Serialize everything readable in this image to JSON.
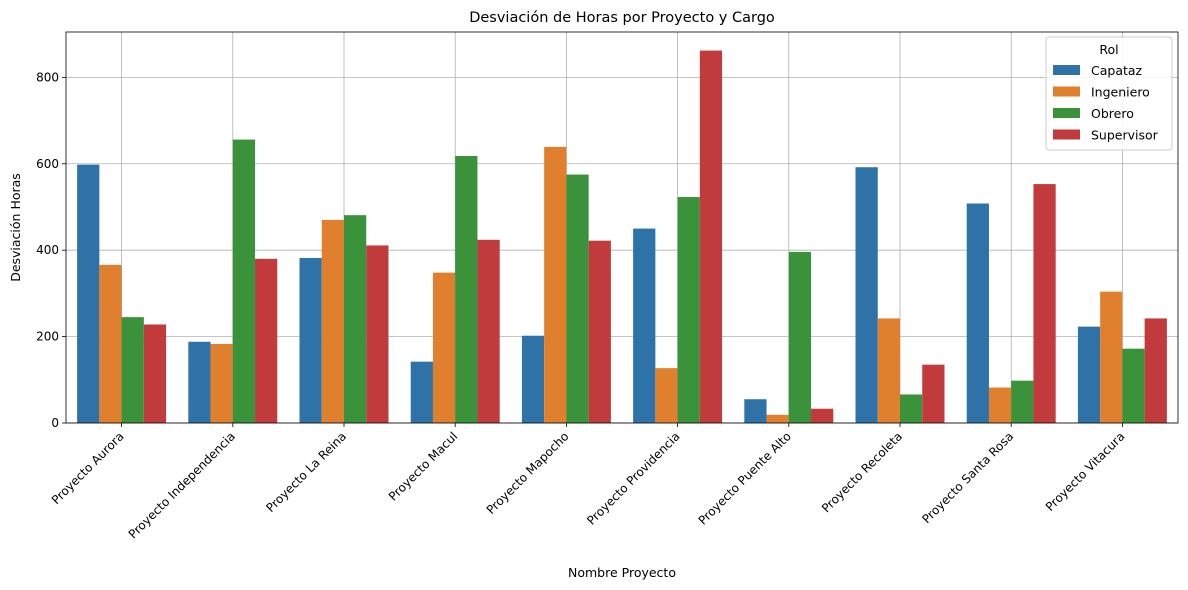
{
  "chart_data": {
    "type": "bar",
    "title": "Desviación de Horas por Proyecto y Cargo",
    "xlabel": "Nombre Proyecto",
    "ylabel": "Desviación Horas",
    "ylim": [
      0,
      905
    ],
    "yticks": [
      0,
      200,
      400,
      600,
      800
    ],
    "grid": true,
    "legend": {
      "title": "Rol",
      "placement": "top-right"
    },
    "categories": [
      "Proyecto Aurora",
      "Proyecto Independencia",
      "Proyecto La Reina",
      "Proyecto Macul",
      "Proyecto Mapocho",
      "Proyecto Providencia",
      "Proyecto Puente Alto",
      "Proyecto Recoleta",
      "Proyecto Santa Rosa",
      "Proyecto Vitacura"
    ],
    "series": [
      {
        "name": "Capataz",
        "color": "#2e72a8",
        "values": [
          598,
          188,
          382,
          142,
          202,
          450,
          55,
          592,
          508,
          223
        ]
      },
      {
        "name": "Ingeniero",
        "color": "#e07f2e",
        "values": [
          366,
          183,
          470,
          348,
          639,
          127,
          19,
          242,
          82,
          304
        ]
      },
      {
        "name": "Obrero",
        "color": "#3a923a",
        "values": [
          245,
          656,
          481,
          618,
          575,
          523,
          396,
          66,
          98,
          172
        ]
      },
      {
        "name": "Supervisor",
        "color": "#c13b3c",
        "values": [
          228,
          380,
          411,
          424,
          422,
          862,
          33,
          135,
          553,
          242
        ]
      }
    ]
  }
}
